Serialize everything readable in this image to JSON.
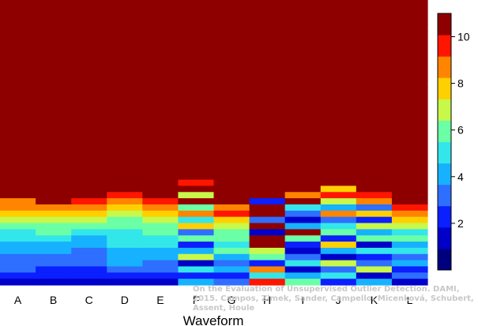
{
  "chart_data": {
    "type": "heatmap",
    "title": "",
    "xlabel": "Waveform",
    "ylabel": "",
    "categories": [
      "A",
      "B",
      "C",
      "D",
      "E",
      "F",
      "G",
      "H",
      "I",
      "J",
      "K",
      "L"
    ],
    "color_range": [
      0,
      11
    ],
    "colorbar": {
      "ticks": [
        2,
        4,
        6,
        8,
        10
      ],
      "position": "right"
    },
    "grid": false,
    "n_rows": 46,
    "rows_order": "top-to-bottom",
    "value_columns": {
      "A": [
        11,
        11,
        11,
        11,
        11,
        11,
        11,
        11,
        11,
        11,
        11,
        11,
        11,
        11,
        11,
        11,
        11,
        11,
        11,
        11,
        11,
        11,
        11,
        11,
        11,
        11,
        11,
        11,
        11,
        11,
        11,
        11,
        9,
        9,
        8,
        7,
        6,
        5,
        5,
        4,
        4,
        3,
        3,
        3,
        2,
        1
      ],
      "B": [
        11,
        11,
        11,
        11,
        11,
        11,
        11,
        11,
        11,
        11,
        11,
        11,
        11,
        11,
        11,
        11,
        11,
        11,
        11,
        11,
        11,
        11,
        11,
        11,
        11,
        11,
        11,
        11,
        11,
        11,
        11,
        11,
        11,
        9,
        8,
        7,
        6,
        6,
        5,
        4,
        4,
        3,
        3,
        2,
        2,
        1
      ],
      "C": [
        11,
        11,
        11,
        11,
        11,
        11,
        11,
        11,
        11,
        11,
        11,
        11,
        11,
        11,
        11,
        11,
        11,
        11,
        11,
        11,
        11,
        11,
        11,
        11,
        11,
        11,
        11,
        11,
        11,
        11,
        11,
        11,
        10,
        9,
        8,
        7,
        6,
        5,
        4,
        4,
        3,
        3,
        3,
        2,
        2,
        1
      ],
      "D": [
        11,
        11,
        11,
        11,
        11,
        11,
        11,
        11,
        11,
        11,
        11,
        11,
        11,
        11,
        11,
        11,
        11,
        11,
        11,
        11,
        11,
        11,
        11,
        11,
        11,
        11,
        11,
        11,
        11,
        11,
        11,
        10,
        9,
        8,
        7,
        6,
        6,
        5,
        5,
        5,
        4,
        4,
        4,
        3,
        2,
        1
      ],
      "E": [
        11,
        11,
        11,
        11,
        11,
        11,
        11,
        11,
        11,
        11,
        11,
        11,
        11,
        11,
        11,
        11,
        11,
        11,
        11,
        11,
        11,
        11,
        11,
        11,
        11,
        11,
        11,
        11,
        11,
        11,
        11,
        11,
        10,
        9,
        8,
        7,
        6,
        6,
        5,
        5,
        4,
        4,
        3,
        3,
        2,
        1
      ],
      "F": [
        11,
        11,
        11,
        11,
        11,
        11,
        11,
        11,
        11,
        11,
        11,
        11,
        11,
        11,
        11,
        11,
        11,
        11,
        11,
        11,
        11,
        11,
        11,
        11,
        11,
        11,
        11,
        11,
        11,
        10,
        11,
        7,
        11,
        6,
        9,
        5,
        8,
        3,
        6,
        2,
        4,
        7,
        1,
        5,
        2,
        4
      ],
      "G": [
        11,
        11,
        11,
        11,
        11,
        11,
        11,
        11,
        11,
        11,
        11,
        11,
        11,
        11,
        11,
        11,
        11,
        11,
        11,
        11,
        11,
        11,
        11,
        11,
        11,
        11,
        11,
        11,
        11,
        11,
        11,
        11,
        11,
        9,
        10,
        8,
        7,
        6,
        6,
        5,
        6,
        4,
        3,
        4,
        2,
        3
      ],
      "H": [
        11,
        11,
        11,
        11,
        11,
        11,
        11,
        11,
        11,
        11,
        11,
        11,
        11,
        11,
        11,
        11,
        11,
        11,
        11,
        11,
        11,
        11,
        11,
        11,
        11,
        11,
        11,
        11,
        11,
        11,
        11,
        11,
        2,
        11,
        11,
        3,
        11,
        1,
        11,
        11,
        7,
        6,
        2,
        9,
        5,
        10
      ],
      "I": [
        11,
        11,
        11,
        11,
        11,
        11,
        11,
        11,
        11,
        11,
        11,
        11,
        11,
        11,
        11,
        11,
        11,
        11,
        11,
        11,
        11,
        11,
        11,
        11,
        11,
        11,
        11,
        11,
        11,
        11,
        11,
        9,
        11,
        5,
        3,
        1,
        4,
        11,
        6,
        2,
        1,
        3,
        5,
        1,
        4,
        6
      ],
      "J": [
        11,
        11,
        11,
        11,
        11,
        11,
        11,
        11,
        11,
        11,
        11,
        11,
        11,
        11,
        11,
        11,
        11,
        11,
        11,
        11,
        11,
        11,
        11,
        11,
        11,
        11,
        11,
        11,
        11,
        11,
        8,
        10,
        7,
        4,
        9,
        3,
        5,
        6,
        2,
        8,
        4,
        1,
        7,
        3,
        5,
        2
      ],
      "K": [
        11,
        11,
        11,
        11,
        11,
        11,
        11,
        11,
        11,
        11,
        11,
        11,
        11,
        11,
        11,
        11,
        11,
        11,
        11,
        11,
        11,
        11,
        11,
        11,
        11,
        11,
        11,
        11,
        11,
        11,
        11,
        10,
        9,
        3,
        8,
        2,
        7,
        4,
        6,
        1,
        5,
        2,
        3,
        7,
        1,
        4
      ],
      "L": [
        11,
        11,
        11,
        11,
        11,
        11,
        11,
        11,
        11,
        11,
        11,
        11,
        11,
        11,
        11,
        11,
        11,
        11,
        11,
        11,
        11,
        11,
        11,
        11,
        11,
        11,
        11,
        11,
        11,
        11,
        11,
        11,
        11,
        10,
        9,
        8,
        7,
        5,
        6,
        4,
        5,
        3,
        4,
        2,
        3,
        1
      ]
    },
    "annotation": "On the Evaluation of Unsupervised Outlier Detection. DAMI, 2015. Campos, Zimek, Sander, Campello, Micenková, Schubert, Assent, Houle"
  }
}
